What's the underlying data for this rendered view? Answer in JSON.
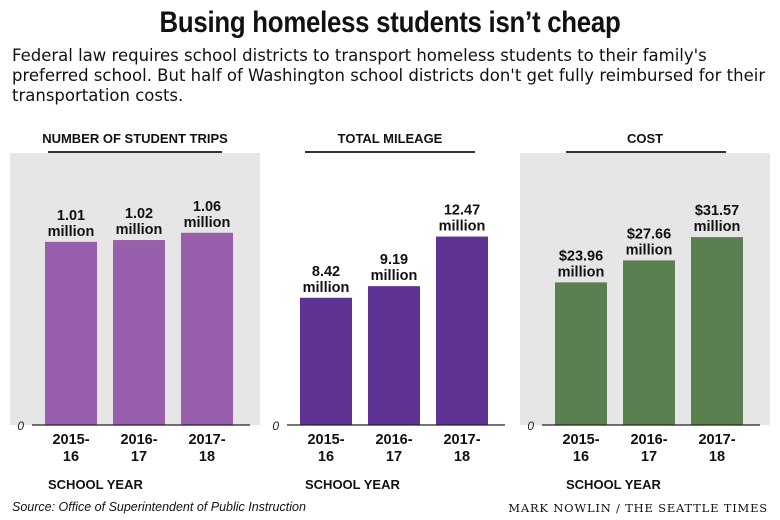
{
  "title": "Busing homeless students isn’t cheap",
  "subtitle": "Federal law requires school districts to transport homeless students to their family's preferred school. But half of Washington school districts don't get fully reimbursed for their transportation costs.",
  "source": "Source: Office of Superintendent of Public Instruction",
  "credit": "MARK NOWLIN / THE SEATTLE TIMES",
  "chart_data": [
    {
      "type": "bar",
      "title": "NUMBER OF STUDENT TRIPS",
      "xlabel": "SCHOOL YEAR",
      "ylabel": "",
      "categories": [
        "2015-16",
        "2016-17",
        "2017-18"
      ],
      "category_lines": [
        [
          "2015-",
          "16"
        ],
        [
          "2016-",
          "17"
        ],
        [
          "2017-",
          "18"
        ]
      ],
      "values": [
        1.01,
        1.02,
        1.06
      ],
      "value_labels": [
        [
          "1.01",
          "million"
        ],
        [
          "1.02",
          "million"
        ],
        [
          "1.06",
          "million"
        ]
      ],
      "unit": "million",
      "ylim": [
        0,
        1.5
      ],
      "zero_label": "0",
      "bar_color": "#9a5fac",
      "background": "#e6e6e6",
      "grid": false
    },
    {
      "type": "bar",
      "title": "TOTAL MILEAGE",
      "xlabel": "SCHOOL YEAR",
      "ylabel": "",
      "categories": [
        "2015-16",
        "2016-17",
        "2017-18"
      ],
      "category_lines": [
        [
          "2015-",
          "16"
        ],
        [
          "2016-",
          "17"
        ],
        [
          "2017-",
          "18"
        ]
      ],
      "values": [
        8.42,
        9.19,
        12.47
      ],
      "value_labels": [
        [
          "8.42",
          "million"
        ],
        [
          "9.19",
          "million"
        ],
        [
          "12.47",
          "million"
        ]
      ],
      "unit": "million",
      "ylim": [
        0,
        18.0
      ],
      "zero_label": "0",
      "bar_color": "#5e3393",
      "background": "#ffffff",
      "grid": false
    },
    {
      "type": "bar",
      "title": "COST",
      "xlabel": "SCHOOL YEAR",
      "ylabel": "",
      "categories": [
        "2015-16",
        "2016-17",
        "2017-18"
      ],
      "category_lines": [
        [
          "2015-",
          "16"
        ],
        [
          "2016-",
          "17"
        ],
        [
          "2017-",
          "18"
        ]
      ],
      "values": [
        23.96,
        27.66,
        31.57
      ],
      "value_labels": [
        [
          "$23.96",
          "million"
        ],
        [
          "$27.66",
          "million"
        ],
        [
          "$31.57",
          "million"
        ]
      ],
      "unit": "million dollars",
      "ylim": [
        0,
        45.7
      ],
      "zero_label": "0",
      "bar_color": "#5b8050",
      "background": "#e6e6e6",
      "grid": false
    }
  ]
}
